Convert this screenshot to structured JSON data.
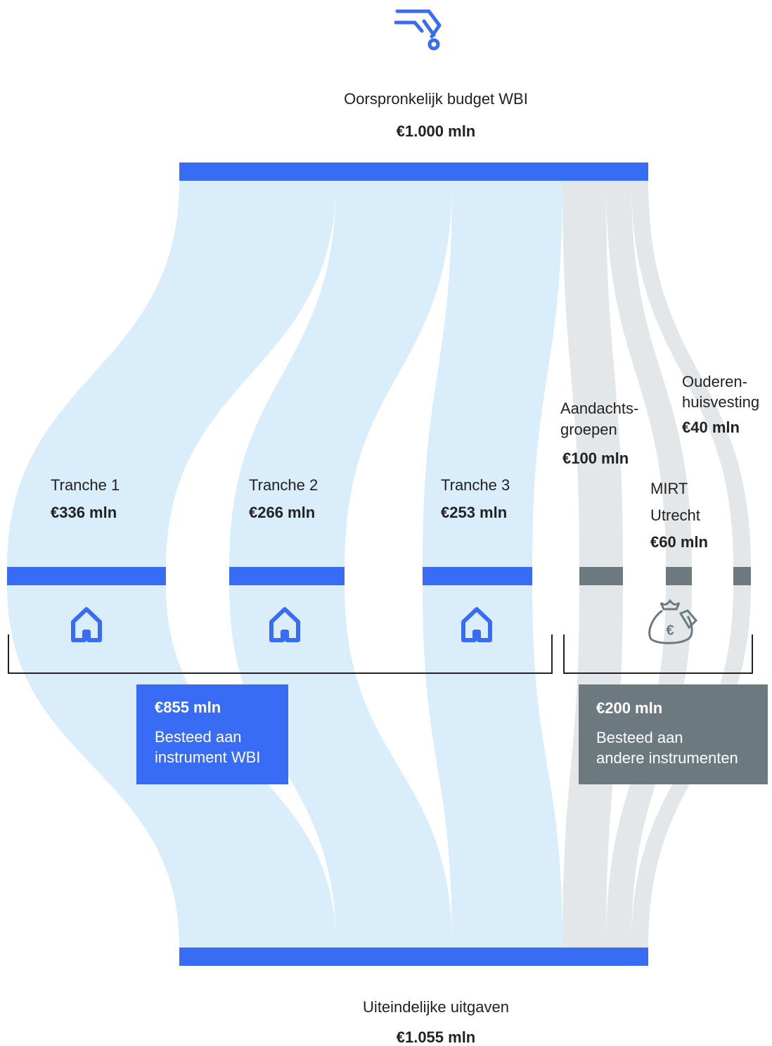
{
  "header": {
    "title": "Oorspronkelijk budget WBI",
    "amount": "€1.000 mln"
  },
  "nodes": [
    {
      "lines": [
        "Tranche 1"
      ],
      "amount": "€336 mln"
    },
    {
      "lines": [
        "Tranche 2"
      ],
      "amount": "€266 mln"
    },
    {
      "lines": [
        "Tranche 3"
      ],
      "amount": "€253 mln"
    },
    {
      "lines": [
        "Aandachts-",
        "groepen"
      ],
      "amount": "€100 mln"
    },
    {
      "lines": [
        "MIRT",
        "Utrecht"
      ],
      "amount": "€60 mln"
    },
    {
      "lines": [
        "Ouderen-",
        "huisvesting"
      ],
      "amount": "€40 mln"
    }
  ],
  "boxes": [
    {
      "amount": "€855 mln",
      "lines": [
        "Besteed aan",
        "instrument WBI"
      ]
    },
    {
      "amount": "€200 mln",
      "lines": [
        "Besteed aan",
        "andere instrumenten"
      ]
    }
  ],
  "footer": {
    "title": "Uiteindelijke uitgaven",
    "amount": "€1.055 mln"
  }
}
